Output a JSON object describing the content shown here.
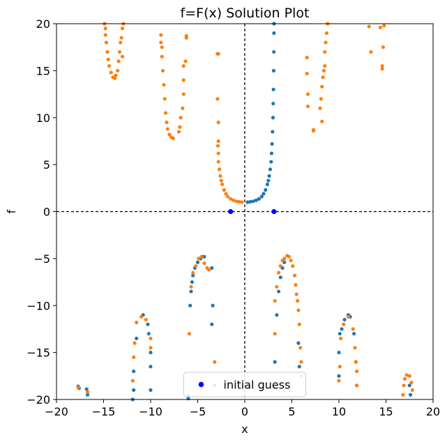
{
  "chart_data": {
    "type": "scatter",
    "title": "f=F(x) Solution Plot",
    "xlabel": "x",
    "ylabel": "f",
    "xlim": [
      -20,
      20
    ],
    "ylim": [
      -20,
      20
    ],
    "xticks": [
      -20,
      -15,
      -10,
      -5,
      0,
      5,
      10,
      15,
      20
    ],
    "yticks": [
      -20,
      -15,
      -10,
      -5,
      0,
      5,
      10,
      15,
      20
    ],
    "xtick_labels": [
      "−20",
      "−15",
      "−10",
      "−5",
      "0",
      "5",
      "10",
      "15",
      "20"
    ],
    "ytick_labels": [
      "−20",
      "−15",
      "−10",
      "−5",
      "0",
      "5",
      "10",
      "15",
      "20"
    ],
    "reference_lines": {
      "x": 0,
      "y": 0,
      "style": "dashed",
      "color": "#000000"
    },
    "grid": false,
    "legend_position": "lower-center",
    "series": [
      {
        "color": "#1f77b4",
        "points": [
          [
            0.3,
            1.0
          ],
          [
            0.6,
            1.05
          ],
          [
            0.9,
            1.1
          ],
          [
            1.2,
            1.2
          ],
          [
            1.5,
            1.35
          ],
          [
            1.8,
            1.6
          ],
          [
            2.0,
            1.9
          ],
          [
            2.2,
            2.3
          ],
          [
            2.4,
            2.9
          ],
          [
            2.5,
            3.3
          ],
          [
            2.6,
            3.8
          ],
          [
            2.7,
            4.5
          ],
          [
            2.8,
            5.3
          ],
          [
            2.85,
            6.2
          ],
          [
            2.9,
            7.2
          ],
          [
            2.95,
            8.5
          ],
          [
            3.0,
            10.0
          ],
          [
            3.02,
            11.5
          ],
          [
            3.05,
            13.0
          ],
          [
            3.07,
            15.0
          ],
          [
            3.09,
            17.0
          ],
          [
            3.1,
            19.0
          ],
          [
            3.11,
            20.0
          ],
          [
            -5.7,
            -8.5
          ],
          [
            -5.6,
            -7.5
          ],
          [
            -5.5,
            -6.8
          ],
          [
            -5.3,
            -6.0
          ],
          [
            -5.0,
            -5.4
          ],
          [
            -4.7,
            -5.0
          ],
          [
            -4.5,
            -4.8
          ],
          [
            -4.3,
            -4.8
          ],
          [
            -5.8,
            -10.0
          ],
          [
            3.2,
            -16.0
          ],
          [
            3.4,
            -11.0
          ],
          [
            3.6,
            -8.5
          ],
          [
            3.8,
            -7.0
          ],
          [
            4.0,
            -6.0
          ],
          [
            4.2,
            -5.4
          ],
          [
            5.7,
            -14.0
          ],
          [
            5.8,
            -16.5
          ],
          [
            -10.3,
            -12.0
          ],
          [
            -10.2,
            -13.0
          ],
          [
            -10.0,
            -15.0
          ],
          [
            -10.0,
            -16.5
          ],
          [
            -11.8,
            -17.0
          ],
          [
            -11.8,
            -19.0
          ],
          [
            -11.9,
            -20.0
          ],
          [
            -11.5,
            -13.5
          ],
          [
            -10.8,
            -11.0
          ],
          [
            -10.0,
            -19.0
          ],
          [
            10.0,
            -15.0
          ],
          [
            10.1,
            -13.0
          ],
          [
            10.3,
            -12.5
          ],
          [
            10.6,
            -11.5
          ],
          [
            11.0,
            -11.0
          ],
          [
            11.6,
            -13.0
          ],
          [
            11.8,
            -16.0
          ],
          [
            11.9,
            -18.5
          ],
          [
            10.0,
            -17.5
          ],
          [
            11.2,
            -11.2
          ],
          [
            -17.7,
            -18.6
          ],
          [
            -16.8,
            -18.9
          ],
          [
            -16.7,
            -19.5
          ],
          [
            -17.6,
            -18.8
          ],
          [
            -6.0,
            -19.6
          ],
          [
            -6.0,
            -19.9
          ],
          [
            -3.5,
            -12.0
          ],
          [
            -3.4,
            -10.0
          ],
          [
            -3.5,
            -6.0
          ],
          [
            -3.2,
            -18.5
          ],
          [
            3.2,
            -18.8
          ],
          [
            17.5,
            -18.5
          ],
          [
            17.6,
            -19.5
          ]
        ]
      },
      {
        "color": "#ff7f0e",
        "points": [
          [
            -0.3,
            1.0
          ],
          [
            -0.6,
            1.05
          ],
          [
            -0.9,
            1.1
          ],
          [
            -1.2,
            1.2
          ],
          [
            -1.5,
            1.35
          ],
          [
            -1.8,
            1.6
          ],
          [
            -2.0,
            1.9
          ],
          [
            -2.2,
            2.3
          ],
          [
            -2.4,
            2.9
          ],
          [
            -2.5,
            3.3
          ],
          [
            -2.6,
            3.8
          ],
          [
            -2.7,
            4.5
          ],
          [
            -2.8,
            5.3
          ],
          [
            -2.8,
            6.2
          ],
          [
            -2.85,
            7.0
          ],
          [
            -2.8,
            7.5
          ],
          [
            -2.8,
            9.5
          ],
          [
            -2.9,
            12.0
          ],
          [
            -2.9,
            16.8
          ],
          [
            -2.8,
            16.8
          ],
          [
            -14.9,
            20.0
          ],
          [
            -14.8,
            19.5
          ],
          [
            -14.8,
            18.8
          ],
          [
            -14.7,
            18.0
          ],
          [
            -14.6,
            17.0
          ],
          [
            -14.5,
            16.2
          ],
          [
            -14.4,
            15.5
          ],
          [
            -14.2,
            14.8
          ],
          [
            -14.0,
            14.3
          ],
          [
            -13.8,
            14.2
          ],
          [
            -13.7,
            14.5
          ],
          [
            -13.5,
            15.0
          ],
          [
            -13.4,
            16.0
          ],
          [
            -13.3,
            17.0
          ],
          [
            -13.2,
            18.0
          ],
          [
            -13.0,
            19.5
          ],
          [
            -12.9,
            20.0
          ],
          [
            -13.1,
            18.5
          ],
          [
            -8.9,
            18.8
          ],
          [
            -8.8,
            17.5
          ],
          [
            -8.8,
            16.5
          ],
          [
            -8.7,
            15.0
          ],
          [
            -8.6,
            13.5
          ],
          [
            -8.5,
            12.0
          ],
          [
            -8.4,
            10.5
          ],
          [
            -8.3,
            9.5
          ],
          [
            -8.2,
            8.8
          ],
          [
            -8.0,
            8.2
          ],
          [
            -7.8,
            7.9
          ],
          [
            -7.6,
            7.8
          ],
          [
            -7.0,
            8.5
          ],
          [
            -6.9,
            9.0
          ],
          [
            -6.8,
            10.0
          ],
          [
            -6.6,
            11.0
          ],
          [
            -6.5,
            12.5
          ],
          [
            -6.5,
            14.0
          ],
          [
            -6.5,
            15.5
          ],
          [
            -6.3,
            16.0
          ],
          [
            -6.2,
            18.5
          ],
          [
            -6.2,
            18.7
          ],
          [
            -8.9,
            18.0
          ],
          [
            -5.9,
            -13.0
          ],
          [
            -5.7,
            -8.0
          ],
          [
            -5.5,
            -6.5
          ],
          [
            -5.2,
            -5.8
          ],
          [
            -4.9,
            -5.0
          ],
          [
            -4.6,
            -4.8
          ],
          [
            -4.3,
            -5.5
          ],
          [
            -4.0,
            -6.0
          ],
          [
            -3.8,
            -6.2
          ],
          [
            3.2,
            -9.5
          ],
          [
            3.4,
            -8.0
          ],
          [
            3.6,
            -6.5
          ],
          [
            3.8,
            -5.8
          ],
          [
            4.0,
            -5.2
          ],
          [
            4.2,
            -5.0
          ],
          [
            4.5,
            -4.7
          ],
          [
            4.7,
            -4.8
          ],
          [
            4.9,
            -5.2
          ],
          [
            5.1,
            -5.8
          ],
          [
            5.3,
            -6.8
          ],
          [
            5.4,
            -7.8
          ],
          [
            5.5,
            -8.8
          ],
          [
            5.6,
            -9.5
          ],
          [
            5.7,
            -10.5
          ],
          [
            5.8,
            -12.0
          ],
          [
            5.9,
            -14.5
          ],
          [
            6.0,
            -16.0
          ],
          [
            6.0,
            -17.5
          ],
          [
            3.2,
            -13.0
          ],
          [
            -10.0,
            -13.5
          ],
          [
            -10.0,
            -14.5
          ],
          [
            -10.5,
            -11.5
          ],
          [
            -11.0,
            -11.2
          ],
          [
            -11.5,
            -11.8
          ],
          [
            -11.7,
            -14.0
          ],
          [
            -11.8,
            -15.5
          ],
          [
            -11.9,
            -18.0
          ],
          [
            10.2,
            -13.5
          ],
          [
            10.5,
            -12.0
          ],
          [
            11.0,
            -11.2
          ],
          [
            11.5,
            -12.5
          ],
          [
            11.7,
            -14.5
          ],
          [
            11.8,
            -16.0
          ],
          [
            11.9,
            -17.0
          ],
          [
            11.9,
            -18.5
          ],
          [
            10.1,
            -16.5
          ],
          [
            10.0,
            -18.0
          ],
          [
            6.6,
            16.4
          ],
          [
            6.6,
            14.7
          ],
          [
            6.7,
            12.5
          ],
          [
            6.7,
            11.2
          ],
          [
            7.3,
            8.7
          ],
          [
            7.3,
            8.6
          ],
          [
            8.2,
            13.3
          ],
          [
            8.3,
            14.3
          ],
          [
            8.4,
            15.0
          ],
          [
            8.5,
            15.5
          ],
          [
            8.5,
            17.0
          ],
          [
            8.6,
            18.0
          ],
          [
            8.7,
            19.0
          ],
          [
            8.8,
            20.0
          ],
          [
            8.1,
            12.0
          ],
          [
            8.0,
            11.0
          ],
          [
            8.2,
            9.6
          ],
          [
            13.2,
            19.7
          ],
          [
            13.4,
            17.0
          ],
          [
            14.4,
            19.6
          ],
          [
            14.6,
            15.2
          ],
          [
            14.6,
            15.5
          ],
          [
            14.7,
            17.5
          ],
          [
            14.8,
            19.8
          ],
          [
            16.8,
            -19.5
          ],
          [
            16.9,
            -18.5
          ],
          [
            17.0,
            -17.8
          ],
          [
            17.2,
            -17.4
          ],
          [
            17.5,
            -17.5
          ],
          [
            17.7,
            -18.2
          ],
          [
            17.8,
            -19.0
          ],
          [
            -17.7,
            -18.7
          ],
          [
            -16.7,
            -19.2
          ],
          [
            -3.2,
            -16.0
          ],
          [
            -13.0,
            16.5
          ]
        ]
      },
      {
        "name": "initial guess",
        "color": "#0000ff",
        "points": [
          [
            -1.5,
            0.0
          ],
          [
            3.1,
            0.0
          ]
        ]
      }
    ]
  }
}
